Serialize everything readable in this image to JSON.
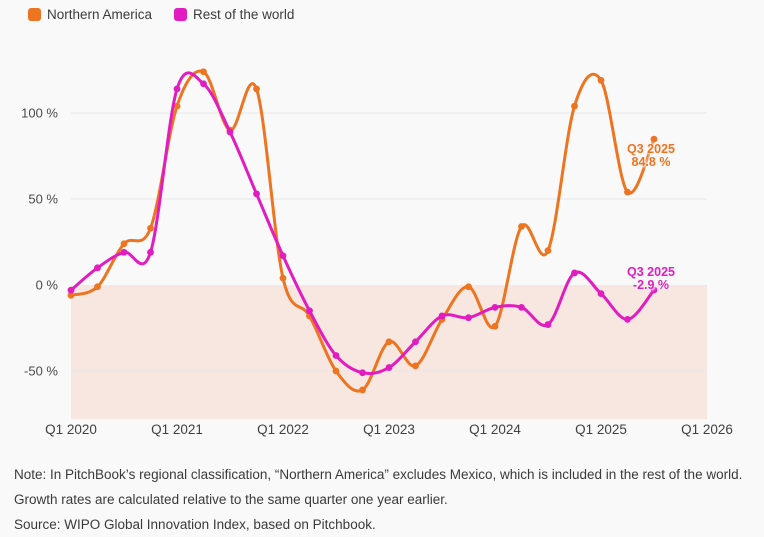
{
  "colors": {
    "page_background": "#f9f9f9",
    "grid_line": "#e7e7e7",
    "negative_region": "#f8e7e0",
    "northern_america": "#ed7420",
    "rest_of_world": "#e11cc0",
    "tick_text": "#4a4a4a",
    "note_text": "#3a3a3a"
  },
  "legend": {
    "items": [
      {
        "label": "Northern America",
        "color": "#ed7420"
      },
      {
        "label": "Rest of the world",
        "color": "#e11cc0"
      }
    ]
  },
  "chart_data": {
    "type": "line",
    "x": [
      "Q1 2020",
      "Q2 2020",
      "Q3 2020",
      "Q4 2020",
      "Q1 2021",
      "Q2 2021",
      "Q3 2021",
      "Q4 2021",
      "Q1 2022",
      "Q2 2022",
      "Q3 2022",
      "Q4 2022",
      "Q1 2023",
      "Q2 2023",
      "Q3 2023",
      "Q4 2023",
      "Q1 2024",
      "Q2 2024",
      "Q3 2024",
      "Q4 2024",
      "Q1 2025",
      "Q2 2025",
      "Q3 2025"
    ],
    "series": [
      {
        "name": "Northern America",
        "color": "#ed7420",
        "values": [
          -6,
          -1,
          24,
          33,
          104,
          124,
          90,
          114,
          4,
          -18,
          -50,
          -61,
          -33,
          -47,
          -20,
          -1,
          -24,
          34,
          20,
          104,
          119,
          54,
          84.8
        ]
      },
      {
        "name": "Rest of the world",
        "color": "#e11cc0",
        "values": [
          -3,
          10,
          19,
          19,
          114,
          117,
          89,
          53,
          17,
          -15,
          -41,
          -51,
          -48,
          -33,
          -18,
          -19,
          -13,
          -13,
          -23,
          7,
          -5,
          -20,
          -2.9
        ]
      }
    ],
    "x_axis_ticks": [
      "Q1 2020",
      "Q1 2021",
      "Q1 2022",
      "Q1 2023",
      "Q1 2024",
      "Q1 2025",
      "Q1 2026"
    ],
    "y_axis_ticks": [
      {
        "label": "100 %",
        "value": 100
      },
      {
        "label": "50 %",
        "value": 50
      },
      {
        "label": "0 %",
        "value": 0
      },
      {
        "label": "-50 %",
        "value": -50
      }
    ],
    "ylim": [
      -78,
      130
    ],
    "grid": true,
    "legend_position": "top-left",
    "negative_region_shaded": true,
    "title": "",
    "xlabel": "",
    "ylabel": ""
  },
  "annotations": [
    {
      "series": "Northern America",
      "label": "Q3 2025",
      "value_label": "84.8 %"
    },
    {
      "series": "Rest of the world",
      "label": "Q3 2025",
      "value_label": "-2.9 %"
    }
  ],
  "notes": {
    "note": "Note: In PitchBook’s regional classification, “Northern America” excludes Mexico, which is included in the rest of the world. Growth rates are calculated relative to the same quarter one year earlier.",
    "source": "Source: WIPO Global Innovation Index, based on Pitchbook."
  }
}
